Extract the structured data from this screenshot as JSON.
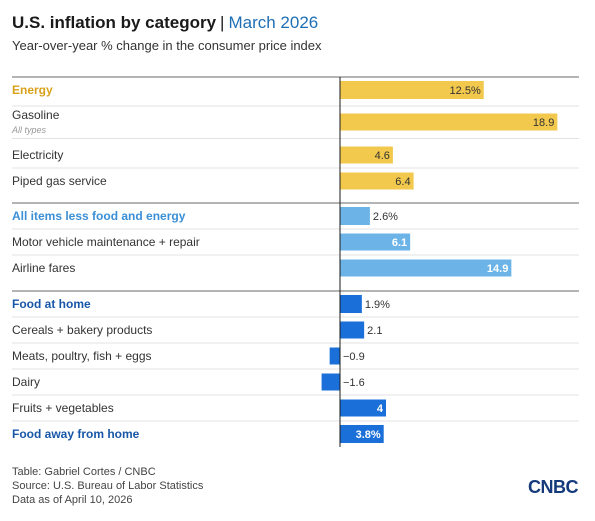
{
  "header": {
    "title": "U.S. inflation by category",
    "separator": "|",
    "date": "March 2026",
    "subtitle": "Year-over-year % change in the consumer price index"
  },
  "colors": {
    "energy": "#f2c94c",
    "energy_text": "#d9a21b",
    "core": "#6cb4e8",
    "core_text": "#3a8fd6",
    "food": "#1a6fd9",
    "food_text": "#1857a8",
    "axis": "#1a1a1a",
    "divider": "#888888",
    "rowline": "#e3e3e3"
  },
  "chart_data": {
    "type": "bar",
    "orientation": "horizontal",
    "categories": [
      "Energy",
      "Gasoline",
      "Electricity",
      "Piped gas service",
      "All items less food and energy",
      "Motor vehicle maintenance + repair",
      "Airline fares",
      "Food at home",
      "Cereals + bakery products",
      "Meats, poultry, fish + eggs",
      "Dairy",
      "Fruits + vegetables",
      "Food away from home"
    ],
    "values": [
      12.5,
      18.9,
      4.6,
      6.4,
      2.6,
      6.1,
      14.9,
      1.9,
      2.1,
      -0.9,
      -1.6,
      4,
      3.8
    ],
    "value_labels": [
      "12.5%",
      "18.9",
      "4.6",
      "6.4",
      "2.6%",
      "6.1",
      "14.9",
      "1.9%",
      "2.1",
      "−0.9",
      "−1.6",
      "4",
      "3.8%"
    ],
    "groups": [
      "energy",
      "energy",
      "energy",
      "energy",
      "core",
      "core",
      "core",
      "food",
      "food",
      "food",
      "food",
      "food",
      "food"
    ],
    "headline": [
      true,
      false,
      false,
      false,
      true,
      false,
      false,
      true,
      false,
      false,
      false,
      false,
      true
    ],
    "sublabels": [
      "",
      "All types",
      "",
      "",
      "",
      "",
      "",
      "",
      "",
      "",
      "",
      "",
      ""
    ],
    "xlim": [
      -2,
      20
    ]
  },
  "footer": {
    "credit": "Table: Gabriel Cortes / CNBC",
    "source": "Source: U.S. Bureau of Labor Statistics",
    "asof": "Data as of April 10, 2026",
    "logo": "CNBC"
  }
}
